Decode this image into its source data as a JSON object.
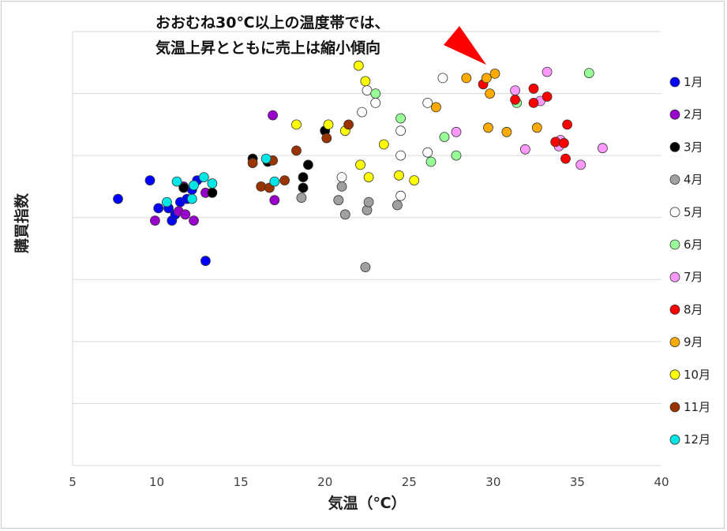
{
  "chart_data": {
    "type": "scatter",
    "title": "",
    "xlabel": "気温（℃）",
    "ylabel": "購買指数",
    "xlim": [
      5,
      40
    ],
    "x_ticks": [
      "5",
      "10",
      "15",
      "20",
      "25",
      "30",
      "35",
      "40"
    ],
    "ylim": [
      0,
      7
    ],
    "grid": "horizontal",
    "legend_position": "right",
    "annotation": {
      "lines": [
        "おおむね30℃以上の温度帯では、",
        "気温上昇とともに売上は縮小傾向"
      ],
      "arrow_color": "#ff0000",
      "arrow_target": [
        29.6,
        6.45
      ]
    },
    "series": [
      {
        "name": "1月",
        "color": "#0000ff",
        "points": [
          [
            7.7,
            4.3
          ],
          [
            9.6,
            4.6
          ],
          [
            10.1,
            4.15
          ],
          [
            10.7,
            4.15
          ],
          [
            10.9,
            3.95
          ],
          [
            11.1,
            4.05
          ],
          [
            11.4,
            4.25
          ],
          [
            11.8,
            4.3
          ],
          [
            12.1,
            4.45
          ],
          [
            12.4,
            4.6
          ],
          [
            12.9,
            3.3
          ]
        ]
      },
      {
        "name": "2月",
        "color": "#9900cc",
        "points": [
          [
            9.9,
            3.95
          ],
          [
            11.3,
            4.1
          ],
          [
            11.7,
            4.05
          ],
          [
            12.2,
            3.95
          ],
          [
            11.6,
            4.5
          ],
          [
            12.9,
            4.4
          ],
          [
            17.0,
            4.28
          ],
          [
            16.9,
            5.65
          ]
        ]
      },
      {
        "name": "3月",
        "color": "#000000",
        "points": [
          [
            11.6,
            4.48
          ],
          [
            13.3,
            4.4
          ],
          [
            15.7,
            4.95
          ],
          [
            16.6,
            4.9
          ],
          [
            18.7,
            4.65
          ],
          [
            18.7,
            4.48
          ],
          [
            19.0,
            4.85
          ],
          [
            20.0,
            5.4
          ]
        ]
      },
      {
        "name": "4月",
        "color": "#a0a0a0",
        "points": [
          [
            18.6,
            4.32
          ],
          [
            20.8,
            4.28
          ],
          [
            21.0,
            4.5
          ],
          [
            21.2,
            4.05
          ],
          [
            22.5,
            4.12
          ],
          [
            22.6,
            4.25
          ],
          [
            24.3,
            4.2
          ],
          [
            22.4,
            3.2
          ]
        ]
      },
      {
        "name": "5月",
        "color": "#ffffff",
        "points": [
          [
            21.0,
            4.65
          ],
          [
            22.2,
            5.7
          ],
          [
            22.5,
            6.05
          ],
          [
            23.0,
            5.85
          ],
          [
            24.5,
            5.4
          ],
          [
            24.5,
            5.0
          ],
          [
            24.5,
            4.35
          ],
          [
            26.1,
            5.05
          ],
          [
            26.1,
            5.85
          ],
          [
            27.0,
            6.25
          ]
        ]
      },
      {
        "name": "6月",
        "color": "#99ff99",
        "points": [
          [
            23.0,
            6.0
          ],
          [
            24.5,
            5.6
          ],
          [
            26.3,
            4.9
          ],
          [
            27.1,
            5.3
          ],
          [
            27.8,
            5.0
          ],
          [
            31.4,
            5.85
          ],
          [
            35.7,
            6.33
          ]
        ]
      },
      {
        "name": "7月",
        "color": "#ff99ff",
        "points": [
          [
            27.8,
            5.38
          ],
          [
            31.3,
            6.05
          ],
          [
            31.9,
            5.1
          ],
          [
            32.8,
            5.88
          ],
          [
            33.2,
            6.35
          ],
          [
            33.9,
            5.15
          ],
          [
            34.0,
            5.25
          ],
          [
            35.2,
            4.85
          ],
          [
            36.5,
            5.12
          ]
        ]
      },
      {
        "name": "8月",
        "color": "#ff0000",
        "points": [
          [
            29.4,
            6.15
          ],
          [
            31.3,
            5.9
          ],
          [
            32.4,
            6.08
          ],
          [
            32.4,
            5.85
          ],
          [
            33.2,
            5.95
          ],
          [
            33.7,
            5.22
          ],
          [
            34.2,
            5.2
          ],
          [
            34.4,
            5.5
          ],
          [
            34.3,
            4.95
          ]
        ]
      },
      {
        "name": "9月",
        "color": "#ffaa00",
        "points": [
          [
            26.6,
            5.78
          ],
          [
            28.4,
            6.25
          ],
          [
            29.6,
            6.25
          ],
          [
            29.8,
            6.0
          ],
          [
            30.1,
            6.32
          ],
          [
            29.7,
            5.45
          ],
          [
            30.8,
            5.38
          ],
          [
            32.6,
            5.45
          ]
        ]
      },
      {
        "name": "10月",
        "color": "#ffff00",
        "points": [
          [
            18.3,
            5.5
          ],
          [
            20.2,
            5.5
          ],
          [
            21.2,
            5.4
          ],
          [
            22.0,
            6.45
          ],
          [
            22.4,
            6.2
          ],
          [
            22.1,
            4.85
          ],
          [
            22.6,
            4.65
          ],
          [
            23.5,
            5.18
          ],
          [
            24.4,
            4.68
          ],
          [
            25.3,
            4.6
          ]
        ]
      },
      {
        "name": "11月",
        "color": "#993300",
        "points": [
          [
            15.7,
            4.88
          ],
          [
            16.2,
            4.5
          ],
          [
            16.7,
            4.48
          ],
          [
            16.9,
            4.92
          ],
          [
            17.6,
            4.6
          ],
          [
            18.3,
            5.08
          ],
          [
            20.1,
            5.28
          ],
          [
            21.4,
            5.5
          ]
        ]
      },
      {
        "name": "12月",
        "color": "#00e5e5",
        "points": [
          [
            10.6,
            4.25
          ],
          [
            11.2,
            4.58
          ],
          [
            12.1,
            4.3
          ],
          [
            12.2,
            4.52
          ],
          [
            12.8,
            4.65
          ],
          [
            13.3,
            4.55
          ],
          [
            16.5,
            4.95
          ],
          [
            17.0,
            4.58
          ]
        ]
      }
    ]
  }
}
